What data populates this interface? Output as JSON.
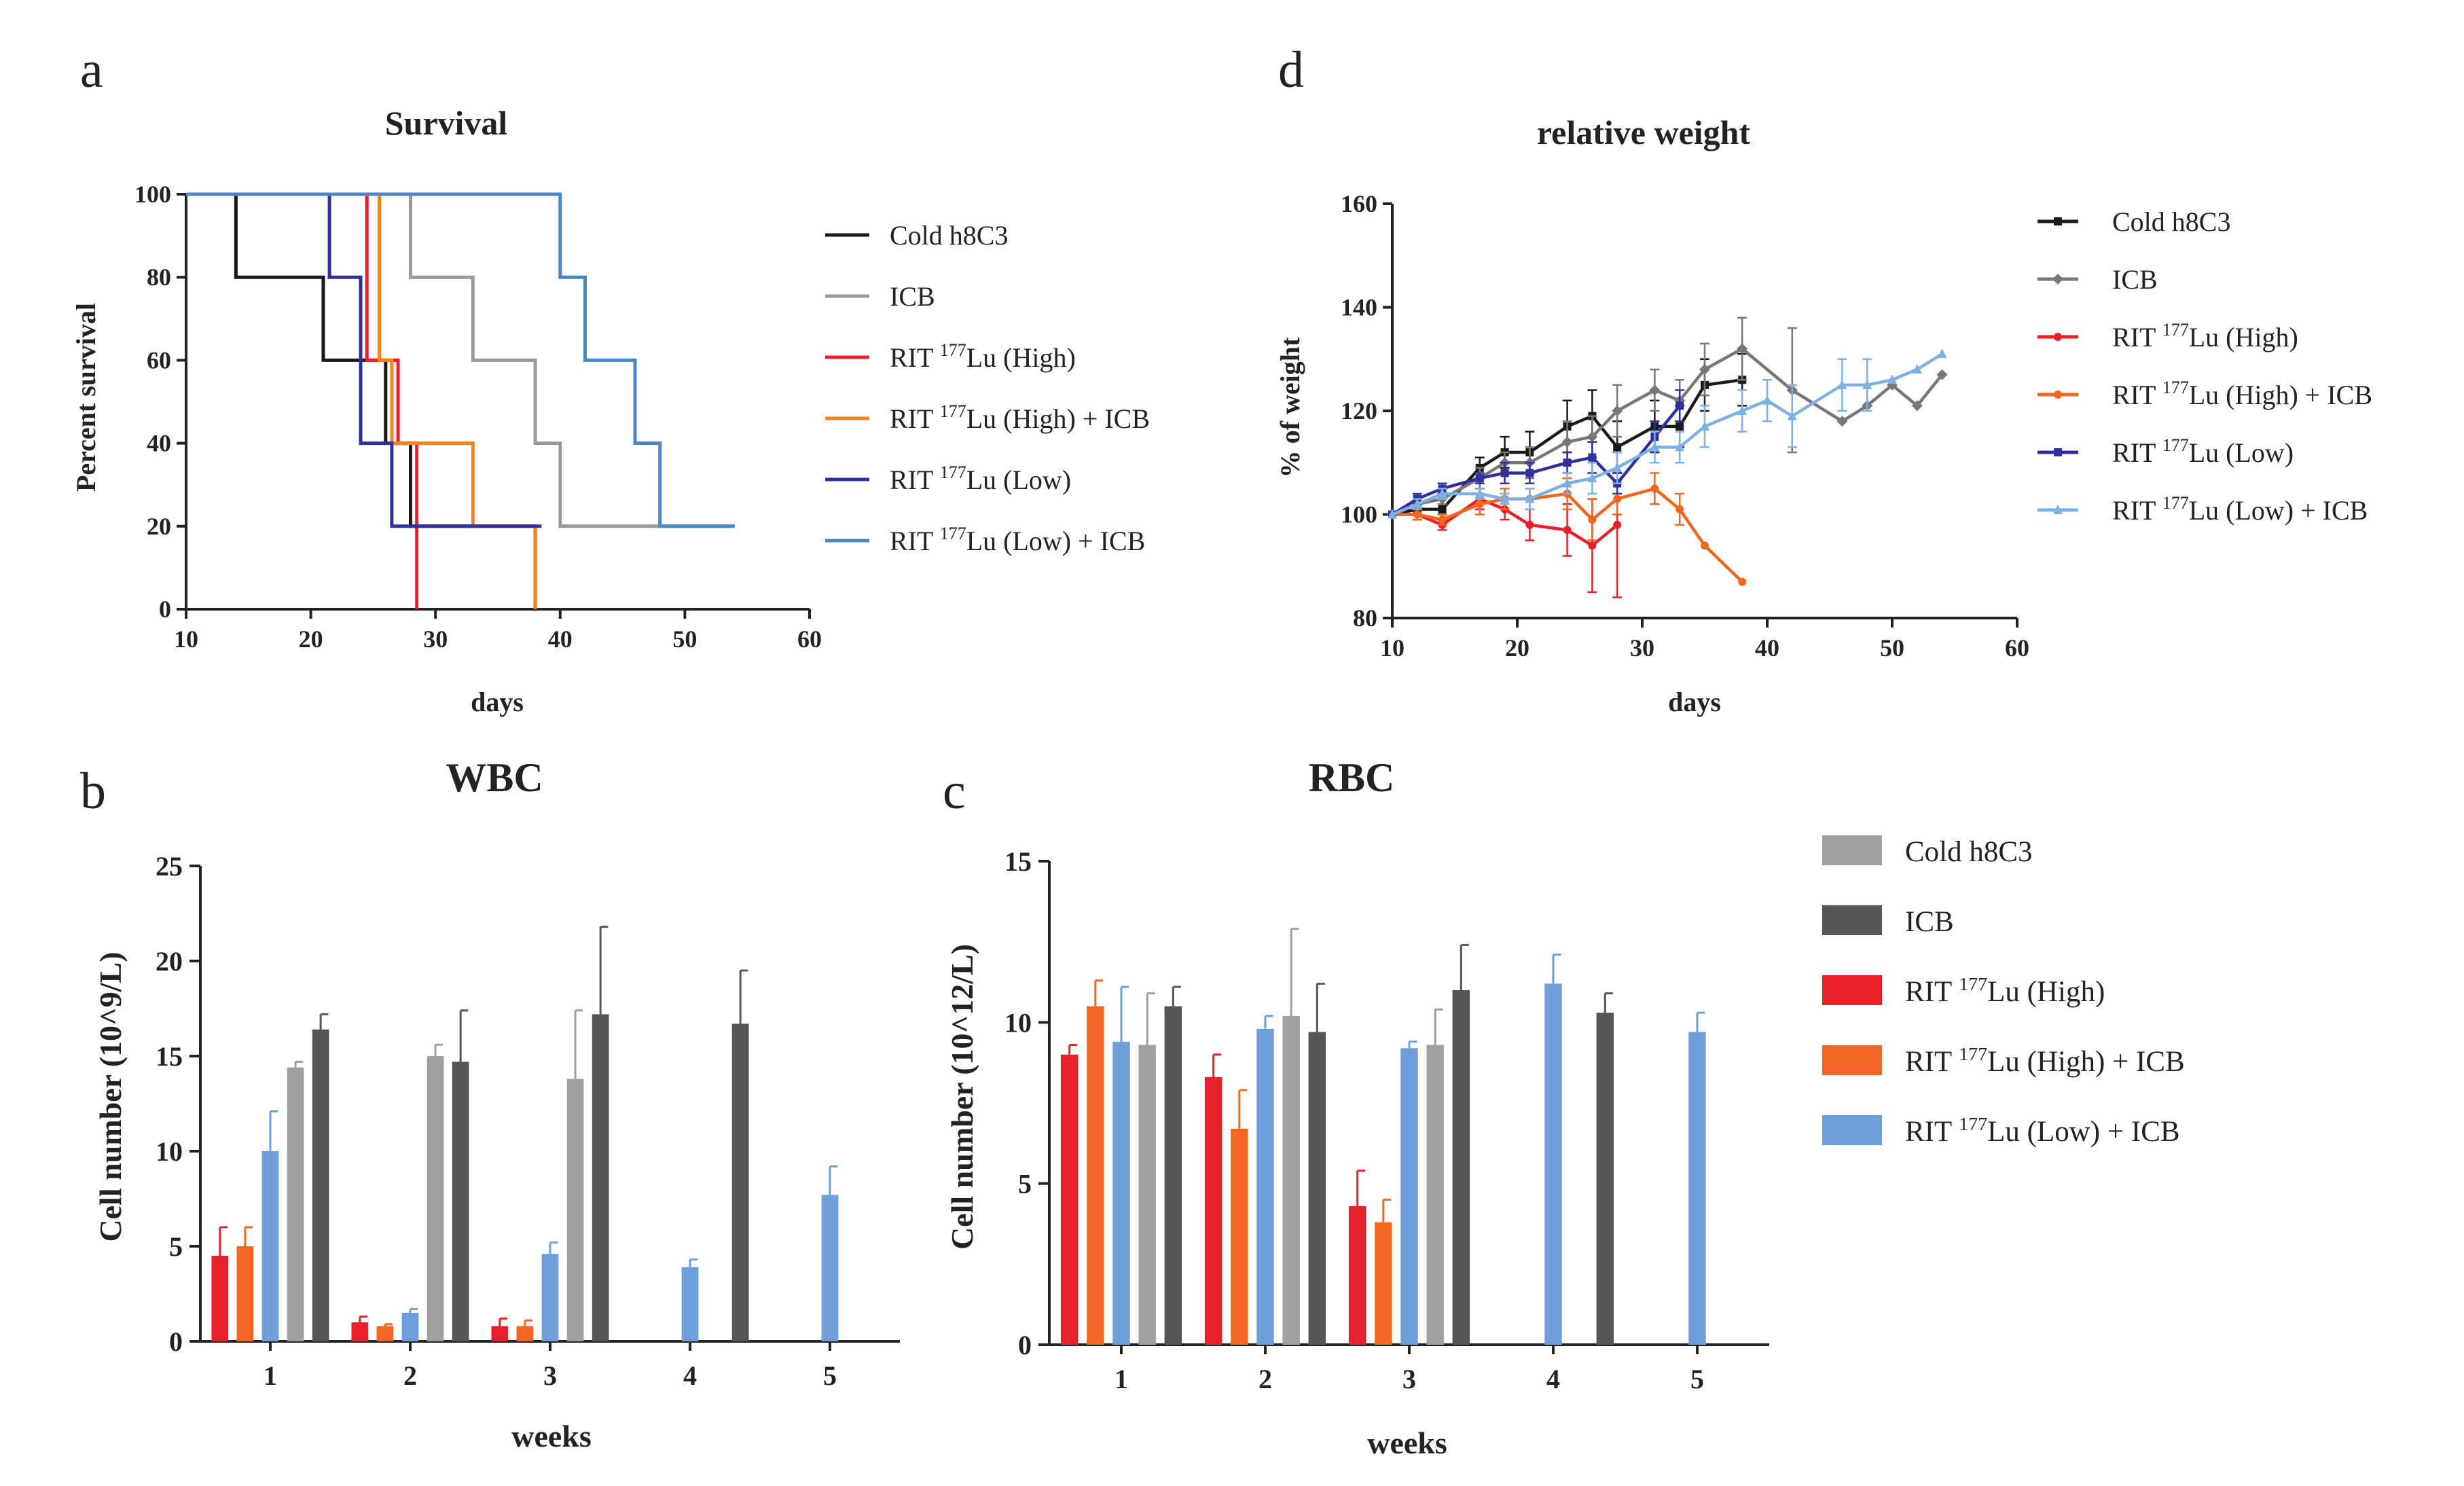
{
  "panel_labels": {
    "a": "a",
    "b": "b",
    "c": "c",
    "d": "d"
  },
  "chart_data": [
    {
      "id": "a",
      "type": "line",
      "subtype": "step",
      "title": "Survival",
      "xlabel": "days",
      "ylabel": "Percent survival",
      "xlim": [
        10,
        60
      ],
      "ylim": [
        0,
        100
      ],
      "xticks": [
        10,
        20,
        30,
        40,
        50,
        60
      ],
      "yticks": [
        0,
        20,
        40,
        60,
        80,
        100
      ],
      "series": [
        {
          "name": "Cold h8C3",
          "color": "#1a1a1a",
          "points": [
            [
              10,
              100
            ],
            [
              14,
              100
            ],
            [
              14,
              80
            ],
            [
              21,
              80
            ],
            [
              21,
              60
            ],
            [
              26,
              60
            ],
            [
              26,
              40
            ],
            [
              28,
              40
            ],
            [
              28,
              20
            ],
            [
              38,
              20
            ],
            [
              38,
              0
            ]
          ]
        },
        {
          "name": "ICB",
          "color": "#999999",
          "points": [
            [
              10,
              100
            ],
            [
              28,
              100
            ],
            [
              28,
              80
            ],
            [
              33,
              80
            ],
            [
              33,
              60
            ],
            [
              38,
              60
            ],
            [
              38,
              40
            ],
            [
              40,
              40
            ],
            [
              40,
              20
            ],
            [
              54,
              20
            ]
          ]
        },
        {
          "name": "RIT 177Lu (High)",
          "color": "#e8202a",
          "points": [
            [
              10,
              100
            ],
            [
              24.5,
              100
            ],
            [
              24.5,
              60
            ],
            [
              27,
              60
            ],
            [
              27,
              40
            ],
            [
              28.5,
              40
            ],
            [
              28.5,
              0
            ]
          ]
        },
        {
          "name": "RIT 177Lu (High) + ICB",
          "color": "#f5821f",
          "points": [
            [
              10,
              100
            ],
            [
              25.5,
              100
            ],
            [
              25.5,
              60
            ],
            [
              26.5,
              60
            ],
            [
              26.5,
              40
            ],
            [
              33,
              40
            ],
            [
              33,
              20
            ],
            [
              38,
              20
            ],
            [
              38,
              0
            ]
          ]
        },
        {
          "name": "RIT 177Lu (Low)",
          "color": "#30309a",
          "points": [
            [
              10,
              100
            ],
            [
              21.5,
              100
            ],
            [
              21.5,
              80
            ],
            [
              24,
              80
            ],
            [
              24,
              40
            ],
            [
              26.5,
              40
            ],
            [
              26.5,
              20
            ],
            [
              38.5,
              20
            ]
          ]
        },
        {
          "name": "RIT 177Lu (Low) + ICB",
          "color": "#4a86c8",
          "points": [
            [
              10,
              100
            ],
            [
              40,
              100
            ],
            [
              40,
              80
            ],
            [
              42,
              80
            ],
            [
              42,
              60
            ],
            [
              46,
              60
            ],
            [
              46,
              40
            ],
            [
              48,
              40
            ],
            [
              48,
              20
            ],
            [
              54,
              20
            ]
          ]
        }
      ]
    },
    {
      "id": "d",
      "type": "line",
      "title": "relative weight",
      "xlabel": "days",
      "ylabel": "% of weight",
      "xlim": [
        10,
        60
      ],
      "ylim": [
        80,
        160
      ],
      "xticks": [
        10,
        20,
        30,
        40,
        50,
        60
      ],
      "yticks": [
        80,
        100,
        120,
        140,
        160
      ],
      "series": [
        {
          "name": "Cold h8C3",
          "color": "#1a1a1a",
          "marker": "square",
          "points": [
            [
              10,
              100,
              0
            ],
            [
              12,
              101,
              1
            ],
            [
              14,
              101,
              1
            ],
            [
              17,
              109,
              2
            ],
            [
              19,
              112,
              3
            ],
            [
              21,
              112,
              4
            ],
            [
              24,
              117,
              5
            ],
            [
              26,
              119,
              5
            ],
            [
              28,
              113,
              5
            ],
            [
              31,
              117,
              5
            ],
            [
              33,
              117,
              4
            ],
            [
              35,
              125,
              5
            ],
            [
              38,
              126,
              5
            ]
          ]
        },
        {
          "name": "ICB",
          "color": "#777777",
          "marker": "diamond",
          "points": [
            [
              10,
              100,
              0
            ],
            [
              12,
              102,
              1
            ],
            [
              14,
              103,
              1
            ],
            [
              17,
              107,
              2
            ],
            [
              19,
              110,
              2
            ],
            [
              21,
              110,
              3
            ],
            [
              24,
              114,
              4
            ],
            [
              26,
              115,
              4
            ],
            [
              28,
              120,
              5
            ],
            [
              31,
              124,
              4
            ],
            [
              33,
              122,
              4
            ],
            [
              35,
              128,
              5
            ],
            [
              38,
              132,
              6
            ],
            [
              42,
              124,
              12
            ],
            [
              46,
              118,
              0
            ],
            [
              48,
              121,
              0
            ],
            [
              50,
              125,
              0
            ],
            [
              52,
              121,
              0
            ],
            [
              54,
              127,
              0
            ]
          ]
        },
        {
          "name": "RIT 177Lu (High)",
          "color": "#e8202a",
          "marker": "dot",
          "points": [
            [
              10,
              100,
              0
            ],
            [
              12,
              100,
              1
            ],
            [
              14,
              98,
              1
            ],
            [
              17,
              103,
              2
            ],
            [
              19,
              101,
              2
            ],
            [
              21,
              98,
              3
            ],
            [
              24,
              97,
              5
            ],
            [
              26,
              94,
              9
            ],
            [
              28,
              98,
              14
            ]
          ]
        },
        {
          "name": "RIT 177Lu (High) + ICB",
          "color": "#f5651f",
          "marker": "dot",
          "points": [
            [
              10,
              100,
              0
            ],
            [
              12,
              100,
              1
            ],
            [
              14,
              99,
              1
            ],
            [
              17,
              102,
              2
            ],
            [
              19,
              103,
              2
            ],
            [
              21,
              103,
              2
            ],
            [
              24,
              104,
              3
            ],
            [
              26,
              99,
              4
            ],
            [
              28,
              103,
              3
            ],
            [
              31,
              105,
              3
            ],
            [
              33,
              101,
              3
            ],
            [
              35,
              94,
              0
            ],
            [
              38,
              87,
              0
            ]
          ]
        },
        {
          "name": "RIT 177Lu (Low)",
          "color": "#30309a",
          "marker": "square",
          "points": [
            [
              10,
              100,
              0
            ],
            [
              12,
              103,
              1
            ],
            [
              14,
              105,
              1
            ],
            [
              17,
              107,
              1
            ],
            [
              19,
              108,
              2
            ],
            [
              21,
              108,
              2
            ],
            [
              24,
              110,
              2
            ],
            [
              26,
              111,
              3
            ],
            [
              28,
              106,
              2
            ],
            [
              31,
              115,
              3
            ],
            [
              33,
              121,
              3
            ]
          ]
        },
        {
          "name": "RIT 177Lu (Low) + ICB",
          "color": "#7fb0e3",
          "marker": "triangle",
          "points": [
            [
              10,
              100,
              0
            ],
            [
              12,
              102,
              1
            ],
            [
              14,
              104,
              1
            ],
            [
              17,
              104,
              1
            ],
            [
              19,
              103,
              1
            ],
            [
              21,
              103,
              2
            ],
            [
              24,
              106,
              2
            ],
            [
              26,
              107,
              3
            ],
            [
              28,
              109,
              3
            ],
            [
              31,
              113,
              3
            ],
            [
              33,
              113,
              3
            ],
            [
              35,
              117,
              4
            ],
            [
              38,
              120,
              4
            ],
            [
              40,
              122,
              4
            ],
            [
              42,
              119,
              6
            ],
            [
              46,
              125,
              5
            ],
            [
              48,
              125,
              5
            ],
            [
              50,
              126,
              0
            ],
            [
              52,
              128,
              0
            ],
            [
              54,
              131,
              0
            ]
          ]
        }
      ]
    },
    {
      "id": "b",
      "type": "bar",
      "title": "WBC",
      "xlabel": "weeks",
      "ylabel": "Cell number (10^9/L)",
      "ylim": [
        0,
        25
      ],
      "yticks": [
        0,
        5,
        10,
        15,
        20,
        25
      ],
      "categories": [
        "1",
        "2",
        "3",
        "4",
        "5"
      ],
      "series": [
        {
          "name": "RIT 177Lu (High)",
          "color": "#e8202a",
          "values": [
            4.5,
            1.0,
            0.8,
            null,
            null
          ],
          "errors": [
            1.5,
            0.3,
            0.4,
            null,
            null
          ]
        },
        {
          "name": "RIT 177Lu (High) + ICB",
          "color": "#f26522",
          "values": [
            5.0,
            0.8,
            0.8,
            null,
            null
          ],
          "errors": [
            1.0,
            0.1,
            0.3,
            null,
            null
          ]
        },
        {
          "name": "RIT 177Lu (Low) + ICB",
          "color": "#6f9fdb",
          "values": [
            10.0,
            1.5,
            4.6,
            3.9,
            7.7
          ],
          "errors": [
            2.1,
            0.2,
            0.6,
            0.4,
            1.5
          ]
        },
        {
          "name": "Cold h8C3",
          "color": "#a0a0a0",
          "values": [
            14.4,
            15.0,
            13.8,
            null,
            null
          ],
          "errors": [
            0.3,
            0.6,
            3.6,
            null,
            null
          ]
        },
        {
          "name": "ICB",
          "color": "#555555",
          "values": [
            16.4,
            14.7,
            17.2,
            16.7,
            null
          ],
          "errors": [
            0.8,
            2.7,
            4.6,
            2.8,
            null
          ]
        }
      ]
    },
    {
      "id": "c",
      "type": "bar",
      "title": "RBC",
      "xlabel": "weeks",
      "ylabel": "Cell number (10^12/L)",
      "ylim": [
        0,
        15
      ],
      "yticks": [
        0,
        5,
        10,
        15
      ],
      "categories": [
        "1",
        "2",
        "3",
        "4",
        "5"
      ],
      "series": [
        {
          "name": "RIT 177Lu (High)",
          "color": "#e8202a",
          "values": [
            9.0,
            8.3,
            4.3,
            null,
            null
          ],
          "errors": [
            0.3,
            0.7,
            1.1,
            null,
            null
          ]
        },
        {
          "name": "RIT 177Lu (High) + ICB",
          "color": "#f26522",
          "values": [
            10.5,
            6.7,
            3.8,
            null,
            null
          ],
          "errors": [
            0.8,
            1.2,
            0.7,
            null,
            null
          ]
        },
        {
          "name": "RIT 177Lu (Low) + ICB",
          "color": "#6f9fdb",
          "values": [
            9.4,
            9.8,
            9.2,
            11.2,
            9.7
          ],
          "errors": [
            1.7,
            0.4,
            0.2,
            0.9,
            0.6
          ]
        },
        {
          "name": "Cold h8C3",
          "color": "#a0a0a0",
          "values": [
            9.3,
            10.2,
            9.3,
            null,
            null
          ],
          "errors": [
            1.6,
            2.7,
            1.1,
            null,
            null
          ]
        },
        {
          "name": "ICB",
          "color": "#555555",
          "values": [
            10.5,
            9.7,
            11.0,
            10.3,
            null
          ],
          "errors": [
            0.6,
            1.5,
            1.4,
            0.6,
            null
          ]
        }
      ]
    }
  ],
  "legend_a": [
    {
      "prefix": "Cold h8C3",
      "sup": "",
      "suffix": "",
      "color": "#1a1a1a"
    },
    {
      "prefix": "ICB",
      "sup": "",
      "suffix": "",
      "color": "#999999"
    },
    {
      "prefix": "RIT ",
      "sup": "177",
      "suffix": "Lu (High)",
      "color": "#e8202a"
    },
    {
      "prefix": "RIT ",
      "sup": "177",
      "suffix": "Lu (High) + ICB",
      "color": "#f5821f"
    },
    {
      "prefix": "RIT ",
      "sup": "177",
      "suffix": "Lu (Low)",
      "color": "#30309a"
    },
    {
      "prefix": "RIT ",
      "sup": "177",
      "suffix": "Lu (Low) + ICB",
      "color": "#4a86c8"
    }
  ],
  "legend_d": [
    {
      "prefix": "Cold h8C3",
      "sup": "",
      "suffix": "",
      "color": "#1a1a1a",
      "marker": "square"
    },
    {
      "prefix": "ICB",
      "sup": "",
      "suffix": "",
      "color": "#777777",
      "marker": "diamond"
    },
    {
      "prefix": "RIT ",
      "sup": "177",
      "suffix": "Lu (High)",
      "color": "#e8202a",
      "marker": "dot"
    },
    {
      "prefix": "RIT ",
      "sup": "177",
      "suffix": "Lu (High) + ICB",
      "color": "#f5651f",
      "marker": "dot"
    },
    {
      "prefix": "RIT ",
      "sup": "177",
      "suffix": "Lu (Low)",
      "color": "#30309a",
      "marker": "square"
    },
    {
      "prefix": "RIT ",
      "sup": "177",
      "suffix": "Lu (Low) + ICB",
      "color": "#7fb0e3",
      "marker": "triangle"
    }
  ],
  "legend_bars": [
    {
      "prefix": "Cold h8C3",
      "sup": "",
      "suffix": "",
      "color": "#a0a0a0"
    },
    {
      "prefix": "ICB",
      "sup": "",
      "suffix": "",
      "color": "#555555"
    },
    {
      "prefix": "RIT ",
      "sup": "177",
      "suffix": "Lu (High)",
      "color": "#e8202a"
    },
    {
      "prefix": "RIT ",
      "sup": "177",
      "suffix": "Lu (High) + ICB",
      "color": "#f26522"
    },
    {
      "prefix": "RIT ",
      "sup": "177",
      "suffix": "Lu (Low) + ICB",
      "color": "#6f9fdb"
    }
  ]
}
